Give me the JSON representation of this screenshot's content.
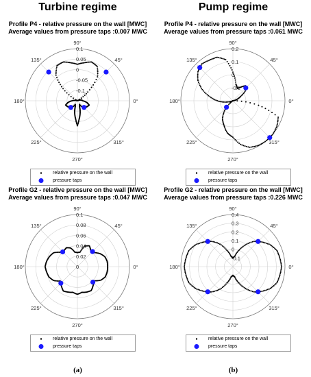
{
  "column_titles": [
    "Turbine regime",
    "Pump regime"
  ],
  "subfigure_labels": [
    "(a)",
    "(b)"
  ],
  "angle_labels": [
    "0°",
    "45°",
    "90°",
    "135°",
    "180°",
    "225°",
    "270°",
    "315°"
  ],
  "colors": {
    "series_points": "#000000",
    "pressure_taps": "#1a1aff",
    "grid": "#d0d0d0"
  },
  "chart_data": [
    {
      "type": "scatter",
      "subtype": "polar",
      "title": "Profile P4 - relative pressure on the wall [MWC]",
      "subtitle": "Average values from pressure taps :0.007 MWC",
      "rlim": [
        -0.15,
        0.1
      ],
      "rticks": [
        "0.1",
        "0.05",
        "0",
        "-0.05",
        "-0.1"
      ],
      "rtick_values": [
        0.1,
        0.05,
        0,
        -0.05,
        -0.1
      ],
      "legend": [
        "relative pressure on the wall",
        "pressure taps"
      ],
      "series": [
        {
          "name": "relative pressure on the wall",
          "theta_deg": [
            0,
            10,
            20,
            30,
            40,
            50,
            60,
            70,
            80,
            90,
            100,
            110,
            120,
            130,
            140,
            150,
            160,
            170,
            180,
            190,
            200,
            210,
            220,
            230,
            240,
            250,
            255,
            260,
            265,
            270,
            275,
            280,
            285,
            290,
            300,
            310,
            320,
            330,
            340,
            350
          ],
          "r": [
            -0.125,
            -0.13,
            -0.14,
            -0.148,
            -0.085,
            0.0,
            0.04,
            0.048,
            0.035,
            0.025,
            0.035,
            0.048,
            0.045,
            0.01,
            -0.06,
            -0.14,
            -0.148,
            -0.14,
            -0.125,
            -0.105,
            -0.09,
            -0.095,
            -0.1,
            -0.105,
            -0.13,
            -0.12,
            -0.1,
            -0.08,
            -0.06,
            -0.03,
            -0.06,
            -0.08,
            -0.1,
            -0.12,
            -0.13,
            -0.105,
            -0.1,
            -0.095,
            -0.09,
            -0.105
          ]
        },
        {
          "name": "pressure taps",
          "theta_deg": [
            45,
            135,
            225,
            315
          ],
          "r": [
            0.045,
            0.045,
            -0.105,
            -0.105
          ]
        }
      ]
    },
    {
      "type": "scatter",
      "subtype": "polar",
      "title": "Profile P4 - relative pressure on the wall [MWC]",
      "subtitle": "Average values from pressure taps :0.061 MWC",
      "rlim": [
        -0.2,
        0.2
      ],
      "rticks": [
        "0.2",
        "0.1",
        "0",
        "-0.1"
      ],
      "rtick_values": [
        0.2,
        0.1,
        0,
        -0.1
      ],
      "legend": [
        "relative pressure on the wall",
        "pressure taps"
      ],
      "series": [
        {
          "name": "relative pressure on the wall",
          "theta_deg": [
            0,
            10,
            20,
            30,
            40,
            50,
            60,
            70,
            80,
            90,
            100,
            110,
            120,
            130,
            140,
            150,
            160,
            170,
            180,
            190,
            200,
            210,
            220,
            230,
            240,
            250,
            260,
            270,
            280,
            290,
            300,
            310,
            320,
            330,
            340,
            350
          ],
          "r": [
            -0.2,
            -0.19,
            -0.165,
            -0.13,
            -0.07,
            -0.05,
            -0.08,
            -0.1,
            -0.07,
            0.02,
            0.12,
            0.155,
            0.16,
            0.17,
            0.15,
            0.11,
            0.05,
            -0.02,
            -0.08,
            -0.14,
            -0.2,
            -0.2,
            -0.17,
            -0.1,
            -0.04,
            0.0,
            0.05,
            0.08,
            0.14,
            0.18,
            0.195,
            0.2,
            0.2,
            0.19,
            0.17,
            0.0
          ]
        },
        {
          "name": "pressure taps",
          "theta_deg": [
            45,
            135,
            225,
            315
          ],
          "r": [
            -0.06,
            0.16,
            -0.13,
            0.2
          ]
        }
      ]
    },
    {
      "type": "scatter",
      "subtype": "polar",
      "title": "Profile G2 - relative pressure on the wall [MWC]",
      "subtitle": "Average values from pressure taps :0.047 MWC",
      "rlim": [
        0,
        0.1
      ],
      "rticks": [
        "0.1",
        "0.08",
        "0.06",
        "0.04",
        "0.02",
        "0"
      ],
      "rtick_values": [
        0.1,
        0.08,
        0.06,
        0.04,
        0.02,
        0
      ],
      "legend": [
        "relative pressure on the wall",
        "pressure taps"
      ],
      "series": [
        {
          "name": "relative pressure on the wall",
          "theta_deg": [
            0,
            10,
            20,
            30,
            40,
            50,
            60,
            70,
            80,
            90,
            100,
            110,
            120,
            130,
            140,
            150,
            160,
            170,
            180,
            190,
            200,
            210,
            220,
            230,
            240,
            250,
            260,
            270,
            280,
            290,
            300,
            310,
            320,
            330,
            340,
            350
          ],
          "r": [
            0.058,
            0.058,
            0.056,
            0.05,
            0.042,
            0.04,
            0.046,
            0.042,
            0.028,
            0.027,
            0.028,
            0.038,
            0.042,
            0.04,
            0.043,
            0.053,
            0.057,
            0.06,
            0.062,
            0.06,
            0.058,
            0.053,
            0.043,
            0.048,
            0.054,
            0.052,
            0.05,
            0.053,
            0.05,
            0.052,
            0.053,
            0.047,
            0.042,
            0.052,
            0.057,
            0.058
          ]
        },
        {
          "name": "pressure taps",
          "theta_deg": [
            45,
            135,
            225,
            315
          ],
          "r": [
            0.041,
            0.04,
            0.045,
            0.042
          ]
        }
      ]
    },
    {
      "type": "scatter",
      "subtype": "polar",
      "title": "Profile G2 - relative pressure on the wall [MWC]",
      "subtitle": "Average values from pressure taps :0.226 MWC",
      "rlim": [
        -0.2,
        0.4
      ],
      "rticks": [
        "0.4",
        "0.3",
        "0.2",
        "0.1",
        "0",
        "-0.1"
      ],
      "rtick_values": [
        0.4,
        0.3,
        0.2,
        0.1,
        0,
        -0.1
      ],
      "legend": [
        "relative pressure on the wall",
        "pressure taps"
      ],
      "series": [
        {
          "name": "relative pressure on the wall",
          "theta_deg": [
            0,
            10,
            20,
            30,
            40,
            50,
            60,
            70,
            80,
            90,
            100,
            110,
            120,
            130,
            140,
            150,
            160,
            170,
            180,
            190,
            200,
            210,
            220,
            230,
            240,
            250,
            260,
            270,
            280,
            290,
            300,
            310,
            320,
            330,
            340,
            350
          ],
          "r": [
            0.36,
            0.35,
            0.34,
            0.3,
            0.24,
            0.18,
            0.09,
            0.0,
            -0.08,
            -0.1,
            -0.08,
            0.0,
            0.1,
            0.18,
            0.24,
            0.3,
            0.34,
            0.35,
            0.36,
            0.35,
            0.34,
            0.3,
            0.24,
            0.18,
            0.1,
            0.0,
            -0.08,
            -0.1,
            -0.08,
            0.0,
            0.09,
            0.18,
            0.24,
            0.3,
            0.34,
            0.35
          ]
        },
        {
          "name": "pressure taps",
          "theta_deg": [
            45,
            135,
            225,
            315
          ],
          "r": [
            0.21,
            0.21,
            0.21,
            0.21
          ]
        }
      ]
    }
  ]
}
